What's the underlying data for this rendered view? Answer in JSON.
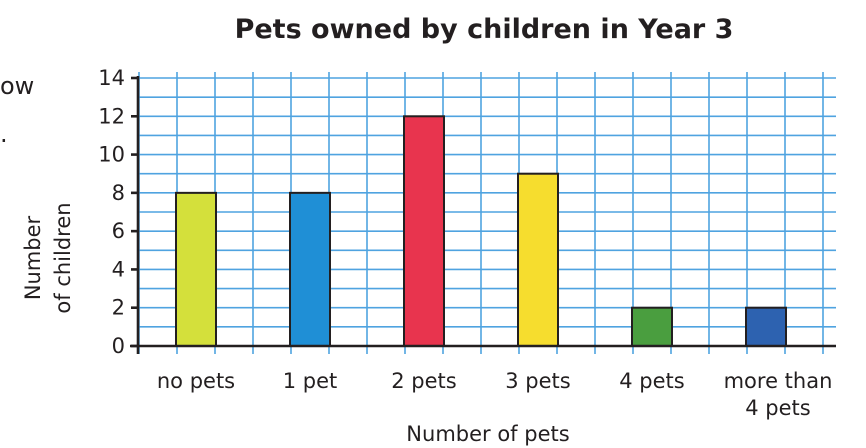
{
  "fragments": {
    "line1": "ow",
    "line2": "."
  },
  "chart_data": {
    "type": "bar",
    "title": "Pets owned by children in Year 3",
    "xlabel": "Number of pets",
    "ylabel_lines": [
      "Number",
      "of children"
    ],
    "categories": [
      "no pets",
      "1 pet",
      "2 pets",
      "3 pets",
      "4 pets",
      "more than 4 pets"
    ],
    "category_label_lines": [
      [
        "no pets"
      ],
      [
        "1 pet"
      ],
      [
        "2 pets"
      ],
      [
        "3 pets"
      ],
      [
        "4 pets"
      ],
      [
        "more than",
        "4 pets"
      ]
    ],
    "values": [
      8,
      8,
      12,
      9,
      2,
      2
    ],
    "colors": [
      "#d4e03b",
      "#1f8fd6",
      "#e8344e",
      "#f6dd2e",
      "#4a9e3f",
      "#2d62b0"
    ],
    "ylim": [
      0,
      14
    ],
    "yticks": [
      0,
      2,
      4,
      6,
      8,
      10,
      12,
      14
    ],
    "grid": true,
    "grid_color": "#4fa3e0"
  }
}
